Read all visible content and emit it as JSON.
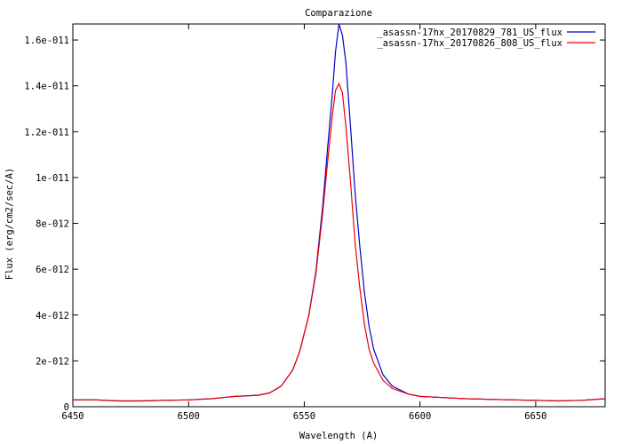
{
  "chart_data": {
    "type": "line",
    "title": "Comparazione",
    "xlabel": "Wavelength (A)",
    "ylabel": "Flux (erg/cm2/sec/A)",
    "xlim": [
      6450,
      6680
    ],
    "ylim": [
      0,
      1.67e-11
    ],
    "xticks": [
      6450,
      6500,
      6550,
      6600,
      6650
    ],
    "xtick_labels": [
      "6450",
      "6500",
      "6550",
      "6600",
      "6650"
    ],
    "yticks": [
      0,
      2e-12,
      4e-12,
      6e-12,
      8e-12,
      1e-11,
      1.2e-11,
      1.4e-11,
      1.6e-11
    ],
    "ytick_labels": [
      "0",
      "2e-012",
      "4e-012",
      "6e-012",
      "8e-012",
      "1e-011",
      "1.2e-011",
      "1.4e-011",
      "1.6e-011"
    ],
    "grid": false,
    "legend_position": "top-right",
    "x": [
      6450,
      6460,
      6470,
      6480,
      6490,
      6500,
      6510,
      6520,
      6530,
      6535,
      6540,
      6545,
      6548,
      6552,
      6555,
      6558,
      6560,
      6562,
      6563.5,
      6565,
      6566.5,
      6568,
      6570,
      6572,
      6574,
      6576,
      6578,
      6580,
      6584,
      6588,
      6595,
      6600,
      6610,
      6620,
      6630,
      6640,
      6650,
      6660,
      6670,
      6680
    ],
    "series": [
      {
        "name": "_asassn-17hx_20170829_781_US_flux",
        "color": "#0000cc",
        "values_e12": [
          0.3,
          0.3,
          0.25,
          0.25,
          0.28,
          0.3,
          0.35,
          0.45,
          0.5,
          0.6,
          0.9,
          1.6,
          2.4,
          4.0,
          5.9,
          8.8,
          11.2,
          13.5,
          15.5,
          16.7,
          16.2,
          15.0,
          12.2,
          9.3,
          7.0,
          5.0,
          3.5,
          2.5,
          1.4,
          0.9,
          0.55,
          0.45,
          0.4,
          0.35,
          0.32,
          0.3,
          0.28,
          0.25,
          0.28,
          0.35
        ]
      },
      {
        "name": "_asassn-17hx_20170826_808_US_flux",
        "color": "#ee0000",
        "values_e12": [
          0.3,
          0.3,
          0.25,
          0.25,
          0.28,
          0.3,
          0.35,
          0.45,
          0.5,
          0.6,
          0.9,
          1.6,
          2.4,
          4.0,
          5.8,
          8.5,
          10.6,
          12.6,
          13.8,
          14.1,
          13.7,
          12.2,
          9.8,
          7.1,
          5.2,
          3.6,
          2.5,
          1.9,
          1.15,
          0.8,
          0.55,
          0.45,
          0.4,
          0.35,
          0.32,
          0.3,
          0.28,
          0.25,
          0.28,
          0.35
        ]
      }
    ]
  }
}
